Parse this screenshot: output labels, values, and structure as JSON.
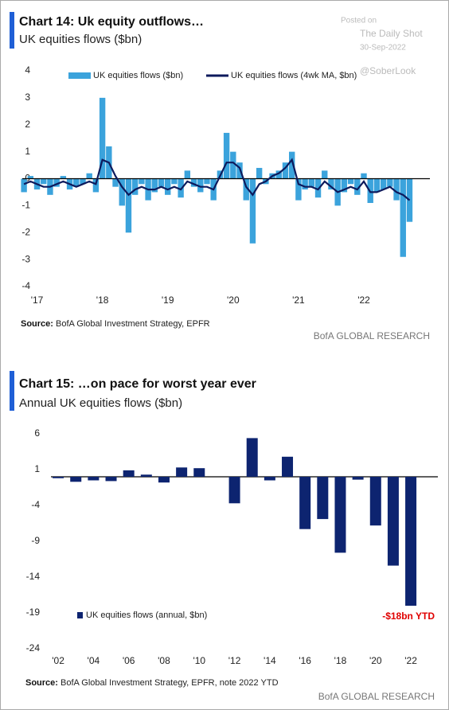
{
  "watermark": {
    "posted": "Posted on",
    "site": "The Daily Shot",
    "date": "30-Sep-2022",
    "handle": "@SoberLook"
  },
  "chart_data": [
    {
      "type": "combo",
      "title": "Chart 14: Uk equity outflows…",
      "subtitle": "UK equities flows ($bn)",
      "x": [
        2016.8,
        2016.9,
        2017.0,
        2017.1,
        2017.2,
        2017.3,
        2017.4,
        2017.5,
        2017.6,
        2017.7,
        2017.8,
        2017.9,
        2018.0,
        2018.1,
        2018.2,
        2018.3,
        2018.4,
        2018.5,
        2018.6,
        2018.7,
        2018.8,
        2018.9,
        2019.0,
        2019.1,
        2019.2,
        2019.3,
        2019.4,
        2019.5,
        2019.6,
        2019.7,
        2019.8,
        2019.9,
        2020.0,
        2020.1,
        2020.2,
        2020.3,
        2020.4,
        2020.5,
        2020.6,
        2020.7,
        2020.8,
        2020.9,
        2021.0,
        2021.1,
        2021.2,
        2021.3,
        2021.4,
        2021.5,
        2021.6,
        2021.7,
        2021.8,
        2021.9,
        2022.0,
        2022.1,
        2022.2,
        2022.3,
        2022.4,
        2022.5,
        2022.6,
        2022.7
      ],
      "series": [
        {
          "name": "UK equities flows ($bn)",
          "type": "bar",
          "color": "#3ba3dc",
          "values": [
            -0.5,
            0.1,
            -0.4,
            -0.2,
            -0.6,
            -0.3,
            0.1,
            -0.4,
            -0.3,
            -0.2,
            0.2,
            -0.5,
            3.0,
            1.2,
            -0.3,
            -1.0,
            -2.0,
            -0.6,
            -0.2,
            -0.8,
            -0.5,
            -0.3,
            -0.6,
            -0.2,
            -0.7,
            0.3,
            -0.3,
            -0.5,
            -0.2,
            -0.8,
            0.3,
            1.7,
            1.0,
            0.6,
            -0.8,
            -2.4,
            0.4,
            -0.2,
            0.2,
            0.3,
            0.6,
            1.0,
            -0.8,
            -0.4,
            -0.3,
            -0.7,
            0.3,
            -0.4,
            -1.0,
            -0.5,
            -0.2,
            -0.6,
            0.2,
            -0.9,
            -0.5,
            -0.4,
            -0.3,
            -0.8,
            -2.9,
            -1.6
          ]
        },
        {
          "name": "UK equities flows (4wk MA, $bn)",
          "type": "line",
          "color": "#0d1a5c",
          "values": [
            -0.2,
            -0.1,
            -0.2,
            -0.3,
            -0.3,
            -0.2,
            -0.1,
            -0.2,
            -0.3,
            -0.2,
            -0.1,
            -0.2,
            0.7,
            0.6,
            0.1,
            -0.3,
            -0.6,
            -0.4,
            -0.3,
            -0.4,
            -0.4,
            -0.3,
            -0.4,
            -0.3,
            -0.4,
            -0.1,
            -0.2,
            -0.3,
            -0.3,
            -0.4,
            0.1,
            0.6,
            0.6,
            0.4,
            -0.3,
            -0.6,
            -0.2,
            -0.1,
            0.1,
            0.2,
            0.4,
            0.7,
            -0.2,
            -0.3,
            -0.3,
            -0.4,
            -0.1,
            -0.3,
            -0.5,
            -0.4,
            -0.3,
            -0.4,
            -0.1,
            -0.5,
            -0.5,
            -0.4,
            -0.3,
            -0.5,
            -0.6,
            -0.8
          ]
        }
      ],
      "xlim": [
        2016.75,
        2022.95
      ],
      "xticks": [
        {
          "value": 2017,
          "label": "'17"
        },
        {
          "value": 2018,
          "label": "'18"
        },
        {
          "value": 2019,
          "label": "'19"
        },
        {
          "value": 2020,
          "label": "'20"
        },
        {
          "value": 2021,
          "label": "'21"
        },
        {
          "value": 2022,
          "label": "'22"
        }
      ],
      "ylim": [
        -4,
        4
      ],
      "yticks": [
        4,
        3,
        2,
        1,
        0,
        -1,
        -2,
        -3,
        -4
      ],
      "grid": false,
      "source_label": "Source:",
      "source": "BofA Global Investment Strategy, EPFR",
      "footer": "BofA GLOBAL RESEARCH"
    },
    {
      "type": "bar",
      "title": "Chart 15: …on pace for worst year ever",
      "subtitle": "Annual UK equities flows ($bn)",
      "categories": [
        "'02",
        null,
        "'04",
        null,
        "'06",
        null,
        "'08",
        null,
        "'10",
        null,
        "'12",
        null,
        "'14",
        null,
        "'16",
        null,
        "'18",
        null,
        "'20",
        null,
        "'22"
      ],
      "series": [
        {
          "name": "UK equities flows (annual, $bn)",
          "color": "#0d2470",
          "values": [
            -0.2,
            -0.7,
            -0.5,
            -0.6,
            0.9,
            0.3,
            -0.8,
            1.3,
            1.2,
            0,
            -3.7,
            5.4,
            -0.5,
            2.8,
            -7.3,
            -5.9,
            -10.6,
            -0.4,
            -6.8,
            -12.4,
            -18
          ]
        }
      ],
      "annotation": "-$18bn YTD",
      "ylim": [
        -24,
        6
      ],
      "yticks": [
        6,
        1,
        -4,
        -9,
        -14,
        -19,
        -24
      ],
      "grid": false,
      "source_label": "Source:",
      "source": "BofA Global Investment Strategy, EPFR, note 2022  YTD",
      "footer": "BofA GLOBAL RESEARCH"
    }
  ]
}
